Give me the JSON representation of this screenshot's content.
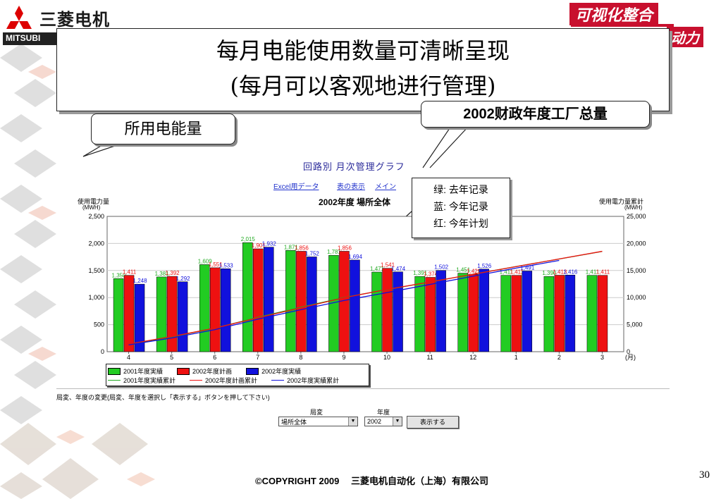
{
  "brand": {
    "company_cn": "三菱电机",
    "company_en": "MITSUBI",
    "slogan_line1": "可视化整合",
    "slogan_line2": "动力"
  },
  "headline": {
    "line1": "每月电能使用数量可清晰呈现",
    "line2": "(每月可以客观地进行管理)"
  },
  "callouts": {
    "energy_used": "所用电能量",
    "fiscal_total": "2002财政年度工厂总量",
    "legend_notes": [
      "绿: 去年记录",
      "蓝: 今年记录",
      "红: 今年计划"
    ]
  },
  "window": {
    "title": "回路別 月次管理グラフ",
    "links": [
      "Excel用データ",
      "表の表示",
      "メイン"
    ]
  },
  "chart_data": {
    "type": "bar",
    "title": "2002年度 場所全体",
    "y_left_label": "使用電力量",
    "y_left_unit": "(MWH)",
    "y_right_label": "使用電力量累計",
    "y_right_unit": "(MWH)",
    "x_unit": "(月)",
    "ylim_left": [
      0,
      2500
    ],
    "ylim_right": [
      0,
      25000
    ],
    "y_left_ticks": [
      "0",
      "500",
      "1,000",
      "1,500",
      "2,000",
      "2,500"
    ],
    "y_right_ticks": [
      "0",
      "5,000",
      "10,000",
      "15,000",
      "20,000",
      "25,000"
    ],
    "categories": [
      "4",
      "5",
      "6",
      "7",
      "8",
      "9",
      "10",
      "11",
      "12",
      "1",
      "2",
      "3"
    ],
    "series": [
      {
        "name": "2001年度実績",
        "color": "#22cc22",
        "label_color": "#22aa22",
        "values": [
          1350,
          1381,
          1609,
          2015,
          1871,
          1781,
          1471,
          1391,
          1451,
          1411,
          1390,
          1411
        ],
        "labels": [
          "1,350",
          "1,381",
          "1,609",
          "2,015",
          "1,871",
          "1,781",
          "1,471",
          "1,391",
          "1,451",
          "1,411",
          "1,390",
          "1,411"
        ]
      },
      {
        "name": "2002年度計画",
        "color": "#ee1111",
        "label_color": "#ee1111",
        "values": [
          1411,
          1392,
          1551,
          1901,
          1856,
          1856,
          1541,
          1374,
          1429,
          1411,
          1413,
          1411
        ],
        "labels": [
          "1,411",
          "1,392",
          "1,551",
          "1,901",
          "1,856",
          "1,856",
          "1,541",
          "1,374",
          "1,429",
          "1,411",
          "1,413",
          "1,411"
        ]
      },
      {
        "name": "2002年度実績",
        "color": "#1111dd",
        "label_color": "#1111dd",
        "values": [
          1248,
          1292,
          1533,
          1932,
          1752,
          1694,
          1474,
          1502,
          1526,
          1491,
          1416,
          null
        ],
        "labels": [
          "1,248",
          "1,292",
          "1,533",
          "1,932",
          "1,752",
          "1,694",
          "1,474",
          "1,502",
          "1,526",
          "1,491",
          "1,416",
          ""
        ]
      }
    ],
    "cumulative_series": [
      {
        "name": "2001年度実績累計",
        "color": "#22aa22",
        "values": [
          1350,
          2731,
          4340,
          6355,
          8226,
          10007,
          11478,
          12869,
          14320,
          15731,
          17121,
          18532
        ]
      },
      {
        "name": "2002年度計画累計",
        "color": "#ee1111",
        "values": [
          1411,
          2803,
          4354,
          6255,
          8111,
          9967,
          11508,
          12882,
          14311,
          15722,
          17135,
          18546
        ]
      },
      {
        "name": "2002年度実績累計",
        "color": "#1111dd",
        "values": [
          1248,
          2540,
          4073,
          6005,
          7757,
          9451,
          10925,
          12427,
          13953,
          15444,
          16860,
          null
        ]
      }
    ],
    "grid": true
  },
  "form": {
    "note": "局変、年度の変更(局変、年度を選択し「表示する」ボタンを押して下さい)",
    "station_label": "局変",
    "year_label": "年度",
    "station_value": "場所全体",
    "year_value": "2002",
    "show_button": "表示する"
  },
  "footer": {
    "copyright": "©COPYRIGHT 2009　 三菱电机自动化（上海）有限公司",
    "page": "30"
  }
}
